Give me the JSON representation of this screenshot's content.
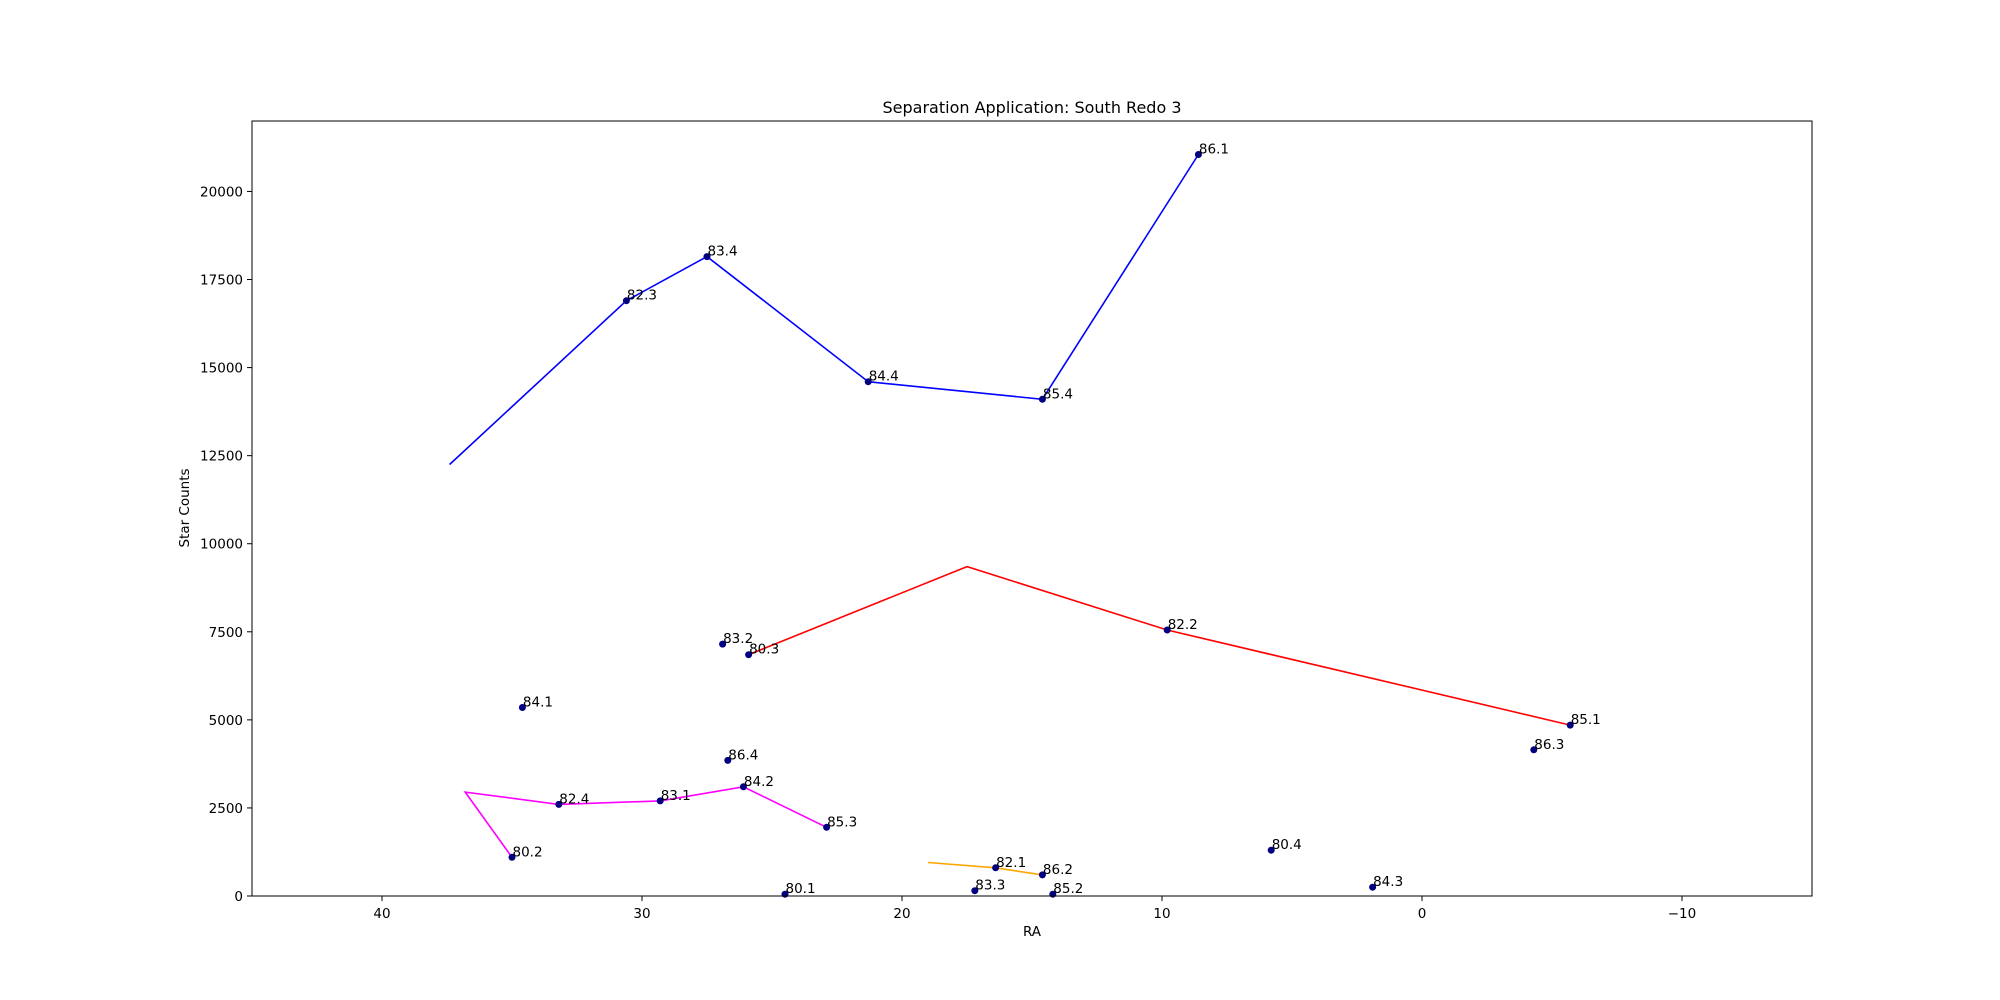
{
  "chart_data": {
    "type": "scatter",
    "title": "Separation Application: South Redo 3",
    "xlabel": "RA",
    "ylabel": "Star Counts",
    "xlim": [
      45,
      -15
    ],
    "ylim": [
      0,
      22000
    ],
    "xticks": [
      40,
      30,
      20,
      10,
      0,
      -10
    ],
    "xtick_labels": [
      "40",
      "30",
      "20",
      "10",
      "0",
      "−10"
    ],
    "yticks": [
      0,
      2500,
      5000,
      7500,
      10000,
      12500,
      15000,
      17500,
      20000
    ],
    "ytick_labels": [
      "0",
      "2500",
      "5000",
      "7500",
      "10000",
      "12500",
      "15000",
      "17500",
      "20000"
    ],
    "grid": false,
    "point_color": "#000080",
    "points": [
      {
        "label": "86.1",
        "x": 8.6,
        "y": 21050
      },
      {
        "label": "83.4",
        "x": 27.5,
        "y": 18150
      },
      {
        "label": "82.3",
        "x": 30.6,
        "y": 16900
      },
      {
        "label": "84.4",
        "x": 21.3,
        "y": 14600
      },
      {
        "label": "85.4",
        "x": 14.6,
        "y": 14100
      },
      {
        "label": "83.2",
        "x": 26.9,
        "y": 7150
      },
      {
        "label": "80.3",
        "x": 25.9,
        "y": 6850
      },
      {
        "label": "82.2",
        "x": 9.8,
        "y": 7550
      },
      {
        "label": "84.1",
        "x": 34.6,
        "y": 5350
      },
      {
        "label": "85.1",
        "x": -5.7,
        "y": 4850
      },
      {
        "label": "86.3",
        "x": -4.3,
        "y": 4150
      },
      {
        "label": "86.4",
        "x": 26.7,
        "y": 3850
      },
      {
        "label": "84.2",
        "x": 26.1,
        "y": 3100
      },
      {
        "label": "82.4",
        "x": 33.2,
        "y": 2600
      },
      {
        "label": "83.1",
        "x": 29.3,
        "y": 2700
      },
      {
        "label": "85.3",
        "x": 22.9,
        "y": 1950
      },
      {
        "label": "80.2",
        "x": 35.0,
        "y": 1100
      },
      {
        "label": "80.4",
        "x": 5.8,
        "y": 1300
      },
      {
        "label": "82.1",
        "x": 16.4,
        "y": 800
      },
      {
        "label": "86.2",
        "x": 14.6,
        "y": 600
      },
      {
        "label": "84.3",
        "x": 1.9,
        "y": 250
      },
      {
        "label": "83.3",
        "x": 17.2,
        "y": 150
      },
      {
        "label": "85.2",
        "x": 14.2,
        "y": 50
      },
      {
        "label": "80.1",
        "x": 24.5,
        "y": 50
      }
    ],
    "series": [
      {
        "color": "#0000ff",
        "x": [
          37.4,
          30.6,
          27.5,
          21.3,
          14.6,
          8.6
        ],
        "y": [
          12250,
          16900,
          18150,
          14600,
          14100,
          21050
        ]
      },
      {
        "color": "#ff0000",
        "x": [
          25.9,
          17.5,
          9.8,
          -5.7
        ],
        "y": [
          6850,
          9350,
          7550,
          4850
        ]
      },
      {
        "color": "#ff00ff",
        "x": [
          35.0,
          36.8,
          33.2,
          29.3,
          26.1,
          22.9
        ],
        "y": [
          1100,
          2950,
          2600,
          2700,
          3100,
          1950
        ]
      },
      {
        "color": "#ffa500",
        "x": [
          19.0,
          16.4,
          14.6
        ],
        "y": [
          950,
          800,
          600
        ]
      }
    ]
  }
}
